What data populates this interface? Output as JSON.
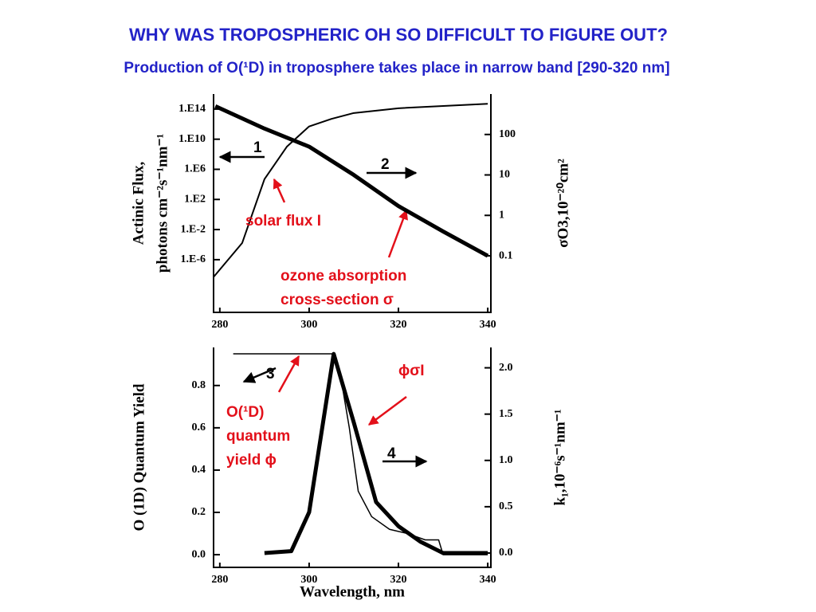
{
  "title": "WHY WAS TROPOSPHERIC OH SO DIFFICULT TO FIGURE OUT?",
  "subtitle": "Production of O(¹D) in troposphere takes place in narrow band [290-320 nm]",
  "chart_data": [
    {
      "type": "line",
      "ylog": true,
      "y2log": true,
      "y_label": [
        "Actinic Flux,",
        "photons cm⁻²s⁻¹nm⁻¹"
      ],
      "y2_label": "σO3,10⁻²⁰cm²",
      "xlim": [
        278.6,
        340.7
      ],
      "xticks": [
        280,
        300,
        320,
        340
      ],
      "ylim": [
        1e-13,
        1e+16
      ],
      "yticks": [
        {
          "value": 100000000000000.0,
          "label": "1.E14"
        },
        {
          "value": 10000000000.0,
          "label": "1.E10"
        },
        {
          "value": 1000000.0,
          "label": "1.E6"
        },
        {
          "value": 100,
          "label": "1.E2"
        },
        {
          "value": 0.01,
          "label": "1.E-2"
        },
        {
          "value": 1e-06,
          "label": "1.E-6"
        }
      ],
      "y2lim": [
        0.004,
        1000
      ],
      "y2ticks": [
        100,
        10,
        1,
        0.1
      ],
      "series": [
        {
          "color": "#000000",
          "width": 2,
          "x": [
            278.6,
            285,
            290,
            295,
            300,
            305,
            310,
            320,
            340
          ],
          "values": [
            5e-09,
            0.00016,
            50000,
            1000000000.0,
            500000000000.0,
            5000000000000.0,
            30000000000000.0,
            130000000000000.0,
            500000000000000.0
          ]
        },
        {
          "color": "#000000",
          "width": 5,
          "axis": "y2",
          "x": [
            279,
            290,
            300,
            310,
            320,
            330,
            340
          ],
          "values": [
            500,
            140,
            50,
            10,
            1.7,
            0.4,
            0.1
          ]
        }
      ],
      "annotations": [
        {
          "text": "1",
          "color": "#000000"
        },
        {
          "text": "2",
          "color": "#000000"
        },
        {
          "text": "solar flux I",
          "color": "#e3101a"
        },
        {
          "text": "ozone absorption",
          "color": "#e3101a"
        },
        {
          "text": "cross-section σ",
          "color": "#e3101a"
        }
      ]
    },
    {
      "type": "line",
      "ylog": false,
      "y2log": false,
      "y_label": [
        "O (1D) Quantum Yield"
      ],
      "y2_label": "k₁,10⁻⁶s⁻¹nm⁻¹",
      "x_label": "Wavelength, nm",
      "xlim": [
        278.6,
        340.7
      ],
      "xticks": [
        280,
        300,
        320,
        340
      ],
      "ylim": [
        -0.06,
        0.98
      ],
      "yticks": [
        {
          "value": 0,
          "label": "0.0"
        },
        0.2,
        0.4,
        0.6,
        0.8
      ],
      "y2lim": [
        -0.155,
        2.22
      ],
      "y2ticks": [
        {
          "value": 0,
          "label": "0.0"
        },
        0.5,
        {
          "value": 1,
          "label": "1.0"
        },
        1.5,
        {
          "value": 2,
          "label": "2.0"
        }
      ],
      "series": [
        {
          "color": "#000000",
          "width": 1.5,
          "x": [
            283,
            305,
            306,
            307,
            309,
            311,
            314,
            318,
            322,
            326,
            329,
            330,
            340
          ],
          "values": [
            0.95,
            0.95,
            0.93,
            0.85,
            0.6,
            0.3,
            0.18,
            0.12,
            0.1,
            0.07,
            0.07,
            0,
            0
          ]
        },
        {
          "color": "#000000",
          "width": 5,
          "axis": "y2",
          "x": [
            290,
            296,
            300,
            305.5,
            310,
            315,
            320,
            325,
            330,
            340
          ],
          "values": [
            0,
            0.02,
            0.44,
            2.15,
            1.41,
            0.55,
            0.29,
            0.12,
            0,
            0
          ]
        }
      ],
      "annotations": [
        {
          "text": "3",
          "color": "#000000"
        },
        {
          "text": "4",
          "color": "#000000"
        },
        {
          "text": "O(¹D)",
          "color": "#e3101a"
        },
        {
          "text": "quantum",
          "color": "#e3101a"
        },
        {
          "text": "yield ϕ",
          "color": "#e3101a"
        },
        {
          "text": "ϕσI",
          "color": "#e3101a"
        }
      ]
    }
  ]
}
